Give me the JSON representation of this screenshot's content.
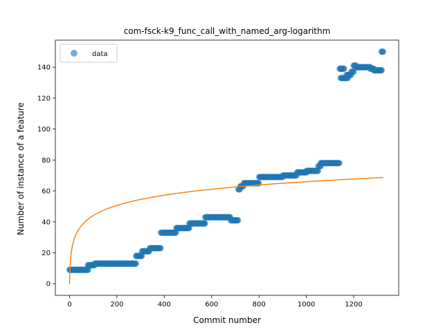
{
  "chart_data": {
    "type": "scatter",
    "title": "com-fsck-k9_func_call_with_named_arg-logarithm",
    "xlabel": "Commit number",
    "ylabel": "Number of instance of a feature",
    "xlim": [
      -60,
      1390
    ],
    "ylim": [
      -7.5,
      157.5
    ],
    "xticks": [
      0,
      200,
      400,
      600,
      800,
      1000,
      1200
    ],
    "yticks": [
      0,
      20,
      40,
      60,
      80,
      100,
      120,
      140
    ],
    "grid": false,
    "legend": {
      "placement": "top-left",
      "entries": [
        "data"
      ]
    },
    "colors": {
      "data": "#1f77b4",
      "fit": "#ff7f0e"
    },
    "series": [
      {
        "name": "data",
        "kind": "scatter",
        "segments": [
          {
            "x_start": 0,
            "x_end": 80,
            "y": 9
          },
          {
            "x_start": 78,
            "x_end": 105,
            "y": 12
          },
          {
            "x_start": 106,
            "x_end": 280,
            "y": 13
          },
          {
            "x_start": 281,
            "x_end": 305,
            "y": 18
          },
          {
            "x_start": 306,
            "x_end": 338,
            "y": 21
          },
          {
            "x_start": 339,
            "x_end": 385,
            "y": 23
          },
          {
            "x_start": 386,
            "x_end": 450,
            "y": 33
          },
          {
            "x_start": 451,
            "x_end": 505,
            "y": 36
          },
          {
            "x_start": 506,
            "x_end": 572,
            "y": 39
          },
          {
            "x_start": 573,
            "x_end": 680,
            "y": 43
          },
          {
            "x_start": 681,
            "x_end": 712,
            "y": 41
          },
          {
            "x_start": 713,
            "x_end": 720,
            "y": 61
          },
          {
            "x_start": 721,
            "x_end": 735,
            "y": 63
          },
          {
            "x_start": 736,
            "x_end": 800,
            "y": 65
          },
          {
            "x_start": 801,
            "x_end": 900,
            "y": 69
          },
          {
            "x_start": 901,
            "x_end": 960,
            "y": 70
          },
          {
            "x_start": 961,
            "x_end": 1000,
            "y": 72
          },
          {
            "x_start": 1001,
            "x_end": 1050,
            "y": 73
          },
          {
            "x_start": 1051,
            "x_end": 1060,
            "y": 76
          },
          {
            "x_start": 1061,
            "x_end": 1140,
            "y": 78
          },
          {
            "x_start": 1141,
            "x_end": 1160,
            "y": 139
          },
          {
            "x_start": 1145,
            "x_end": 1175,
            "y": 133
          },
          {
            "x_start": 1170,
            "x_end": 1190,
            "y": 135
          },
          {
            "x_start": 1190,
            "x_end": 1200,
            "y": 137
          },
          {
            "x_start": 1200,
            "x_end": 1210,
            "y": 141
          },
          {
            "x_start": 1210,
            "x_end": 1270,
            "y": 140
          },
          {
            "x_start": 1270,
            "x_end": 1285,
            "y": 139
          },
          {
            "x_start": 1285,
            "x_end": 1320,
            "y": 138
          },
          {
            "x_start": 1318,
            "x_end": 1325,
            "y": 150
          }
        ]
      },
      {
        "name": "",
        "kind": "line",
        "model": "y = a*ln(1+x)",
        "a": 9.55,
        "x_range": [
          0,
          1325
        ]
      }
    ]
  }
}
